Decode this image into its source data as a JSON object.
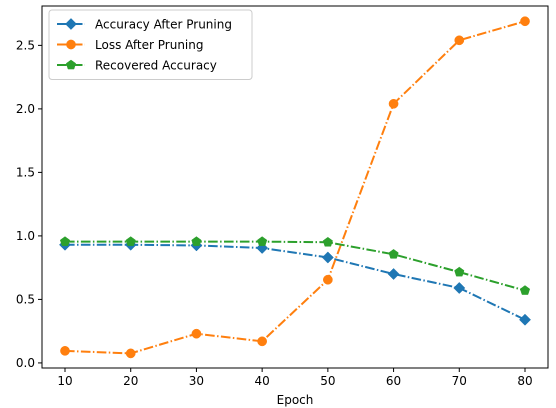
{
  "chart_data": {
    "type": "line",
    "title": "",
    "xlabel": "Epoch",
    "ylabel": "",
    "x": [
      10,
      20,
      30,
      40,
      50,
      60,
      70,
      80
    ],
    "xlim": [
      6.5,
      83.5
    ],
    "ylim": [
      -0.04,
      2.81
    ],
    "xticks": [
      10,
      20,
      30,
      40,
      50,
      60,
      70,
      80
    ],
    "xtick_labels": [
      "10",
      "20",
      "30",
      "40",
      "50",
      "60",
      "70",
      "80"
    ],
    "yticks": [
      0.0,
      0.5,
      1.0,
      1.5,
      2.0,
      2.5
    ],
    "ytick_labels": [
      "0.0",
      "0.5",
      "1.0",
      "1.5",
      "2.0",
      "2.5"
    ],
    "grid": false,
    "legend_position": "top-left",
    "series": [
      {
        "name": "Accuracy After Pruning",
        "values": [
          0.93,
          0.93,
          0.925,
          0.905,
          0.83,
          0.7,
          0.59,
          0.34
        ],
        "color": "#1f77b4",
        "marker": "diamond",
        "linestyle": "dash-dot"
      },
      {
        "name": "Loss After Pruning",
        "values": [
          0.095,
          0.075,
          0.23,
          0.17,
          0.655,
          2.04,
          2.54,
          2.69
        ],
        "color": "#ff7f0e",
        "marker": "circle",
        "linestyle": "dash-dot"
      },
      {
        "name": "Recovered Accuracy",
        "values": [
          0.955,
          0.955,
          0.955,
          0.955,
          0.95,
          0.855,
          0.715,
          0.57
        ],
        "color": "#2ca02c",
        "marker": "pentagon",
        "linestyle": "dash-dot"
      }
    ]
  }
}
